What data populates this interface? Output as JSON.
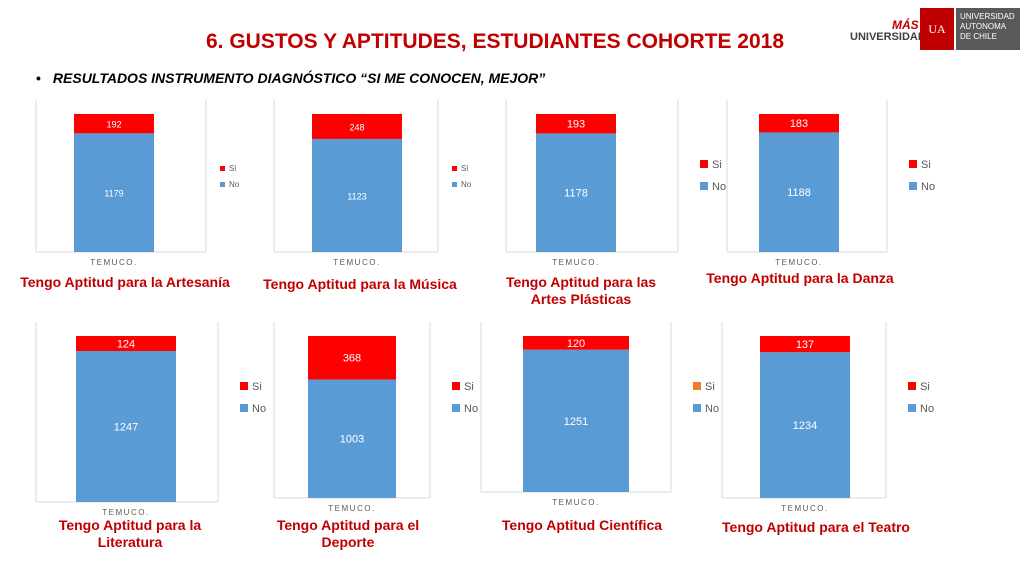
{
  "header": {
    "title": "6. GUSTOS Y APTITUDES, ESTUDIANTES COHORTE 2018",
    "bullet": "RESULTADOS INSTRUMENTO DIAGNÓSTICO “SI ME CONOCEN, MEJOR”",
    "logo_mas": "MÁS",
    "logo_universidad": "UNIVERSIDAD",
    "logo_seal": "UA",
    "logo_name_lines": [
      "UNIVERSIDAD",
      "AUTONOMA",
      "DE CHILE"
    ]
  },
  "colors": {
    "si": "#ff0000",
    "no": "#5b9bd5",
    "si_alt": "#ed7d31",
    "caption": "#c00000"
  },
  "chart_data": [
    {
      "type": "bar",
      "stacked": true,
      "title": "Tengo Aptitud para la Artesanía",
      "categories": [
        "TEMUCO."
      ],
      "series": [
        {
          "name": "No",
          "values": [
            1179
          ]
        },
        {
          "name": "Si",
          "values": [
            192
          ]
        }
      ],
      "legend": "right"
    },
    {
      "type": "bar",
      "stacked": true,
      "title": "Tengo Aptitud para la Música",
      "categories": [
        "TEMUCO."
      ],
      "series": [
        {
          "name": "No",
          "values": [
            1123
          ]
        },
        {
          "name": "Si",
          "values": [
            248
          ]
        }
      ],
      "legend": "right"
    },
    {
      "type": "bar",
      "stacked": true,
      "title": "Tengo Aptitud para las Artes Plásticas",
      "categories": [
        "TEMUCO."
      ],
      "series": [
        {
          "name": "No",
          "values": [
            1178
          ]
        },
        {
          "name": "Si",
          "values": [
            193
          ]
        }
      ],
      "legend": "right"
    },
    {
      "type": "bar",
      "stacked": true,
      "title": "Tengo Aptitud para la Danza",
      "categories": [
        "TEMUCO."
      ],
      "series": [
        {
          "name": "No",
          "values": [
            1188
          ]
        },
        {
          "name": "Si",
          "values": [
            183
          ]
        }
      ],
      "legend": "right"
    },
    {
      "type": "bar",
      "stacked": true,
      "title": "Tengo Aptitud para la Literatura",
      "categories": [
        "TEMUCO."
      ],
      "series": [
        {
          "name": "No",
          "values": [
            1247
          ]
        },
        {
          "name": "Si",
          "values": [
            124
          ]
        }
      ],
      "legend": "right"
    },
    {
      "type": "bar",
      "stacked": true,
      "title": "Tengo Aptitud para el Deporte",
      "categories": [
        "TEMUCO."
      ],
      "series": [
        {
          "name": "No",
          "values": [
            1003
          ]
        },
        {
          "name": "Si",
          "values": [
            368
          ]
        }
      ],
      "legend": "right"
    },
    {
      "type": "bar",
      "stacked": true,
      "title": "Tengo Aptitud Científica",
      "categories": [
        "TEMUCO."
      ],
      "series": [
        {
          "name": "No",
          "values": [
            1251
          ]
        },
        {
          "name": "Si",
          "values": [
            120
          ]
        }
      ],
      "legend": "right"
    },
    {
      "type": "bar",
      "stacked": true,
      "title": "Tengo Aptitud para el Teatro",
      "categories": [
        "TEMUCO."
      ],
      "series": [
        {
          "name": "No",
          "values": [
            1234
          ]
        },
        {
          "name": "Si",
          "values": [
            137
          ]
        }
      ],
      "legend": "right"
    }
  ]
}
